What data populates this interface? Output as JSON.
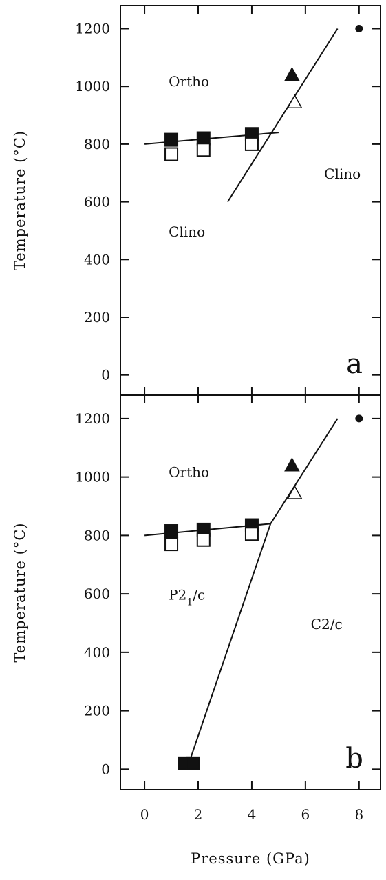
{
  "chart_data": [
    {
      "type": "scatter",
      "panel": "a",
      "panel_letter": "a",
      "xlabel": "Pressure (GPa)",
      "ylabel": "Temperature (°C)",
      "xlim": [
        -0.9,
        8.8
      ],
      "ylim": [
        -70,
        1280
      ],
      "xticks": [
        0,
        2,
        4,
        6,
        8
      ],
      "yticks": [
        0,
        200,
        400,
        600,
        800,
        1000,
        1200
      ],
      "ytick_labels": [
        "0",
        "200",
        "400",
        "600",
        "800",
        "1000",
        "1200"
      ],
      "region_labels": [
        {
          "text": "Ortho",
          "sub": "",
          "after": "",
          "x": 0.9,
          "y": 1000
        },
        {
          "text": "Clino",
          "sub": "",
          "after": "",
          "x": 6.7,
          "y": 680
        },
        {
          "text": "Clino",
          "sub": "",
          "after": "",
          "x": 0.9,
          "y": 480
        }
      ],
      "series": [
        {
          "marker": "filled-square",
          "points": [
            [
              1.0,
              815
            ],
            [
              2.2,
              820
            ],
            [
              4.0,
              835
            ]
          ]
        },
        {
          "marker": "open-square",
          "points": [
            [
              1.0,
              765
            ],
            [
              2.2,
              780
            ],
            [
              4.0,
              800
            ]
          ]
        },
        {
          "marker": "filled-triangle",
          "points": [
            [
              5.5,
              1040
            ]
          ]
        },
        {
          "marker": "open-triangle",
          "points": [
            [
              5.6,
              945
            ]
          ]
        },
        {
          "marker": "filled-circle",
          "points": [
            [
              8.0,
              1200
            ]
          ]
        }
      ],
      "lines": [
        {
          "points": [
            [
              0,
              800
            ],
            [
              5.0,
              840
            ]
          ]
        },
        {
          "points": [
            [
              3.1,
              600
            ],
            [
              7.2,
              1200
            ]
          ]
        }
      ]
    },
    {
      "type": "scatter",
      "panel": "b",
      "panel_letter": "b",
      "xlabel": "Pressure (GPa)",
      "ylabel": "Temperature (°C)",
      "xlim": [
        -0.9,
        8.8
      ],
      "ylim": [
        -70,
        1280
      ],
      "xticks": [
        0,
        2,
        4,
        6,
        8
      ],
      "xtick_labels": [
        "0",
        "2",
        "4",
        "6",
        "8"
      ],
      "yticks": [
        0,
        200,
        400,
        600,
        800,
        1000,
        1200
      ],
      "ytick_labels": [
        "0",
        "200",
        "400",
        "600",
        "800",
        "1000",
        "1200"
      ],
      "region_labels": [
        {
          "text": "Ortho",
          "sub": "",
          "after": "",
          "x": 0.9,
          "y": 1000
        },
        {
          "text": "P2",
          "sub": "1",
          "after": "/c",
          "x": 0.9,
          "y": 580
        },
        {
          "text": "C2/c",
          "sub": "",
          "after": "",
          "x": 6.2,
          "y": 480
        }
      ],
      "series": [
        {
          "marker": "filled-square",
          "points": [
            [
              1.0,
              815
            ],
            [
              2.2,
              820
            ],
            [
              4.0,
              835
            ],
            [
              1.5,
              20
            ],
            [
              1.8,
              20
            ]
          ]
        },
        {
          "marker": "open-square",
          "points": [
            [
              1.0,
              770
            ],
            [
              2.2,
              785
            ],
            [
              4.0,
              805
            ]
          ]
        },
        {
          "marker": "filled-triangle",
          "points": [
            [
              5.5,
              1040
            ]
          ]
        },
        {
          "marker": "open-triangle",
          "points": [
            [
              5.6,
              945
            ]
          ]
        },
        {
          "marker": "filled-circle",
          "points": [
            [
              8.0,
              1200
            ]
          ]
        }
      ],
      "lines": [
        {
          "points": [
            [
              0,
              800
            ],
            [
              4.7,
              840
            ]
          ]
        },
        {
          "points": [
            [
              1.65,
              20
            ],
            [
              4.7,
              840
            ],
            [
              7.2,
              1200
            ]
          ]
        }
      ]
    }
  ]
}
